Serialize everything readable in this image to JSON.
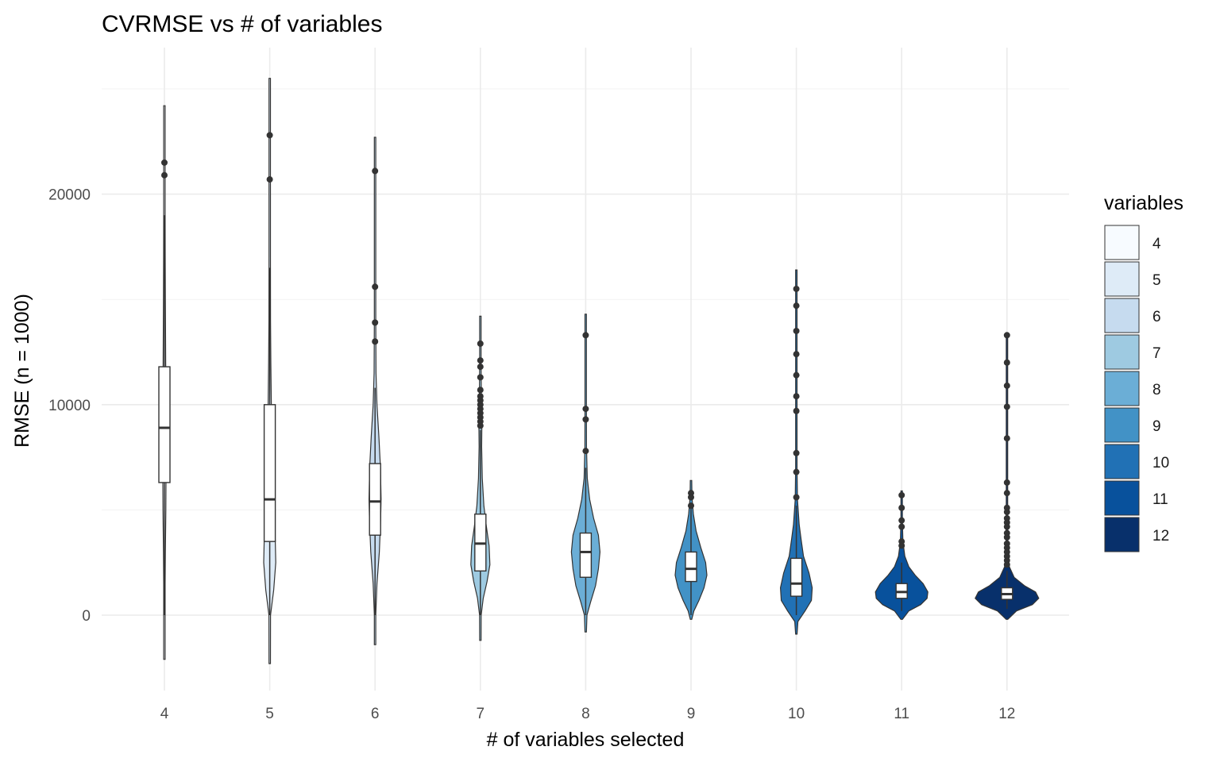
{
  "chart_data": {
    "type": "violin",
    "title": "CVRMSE vs # of variables",
    "xlabel": "# of variables selected",
    "ylabel": "RMSE (n = 1000)",
    "ylim": [
      -3600,
      26500
    ],
    "yticks": [
      0,
      10000,
      20000
    ],
    "grid": true,
    "legend": {
      "title": "variables",
      "position": "right"
    },
    "categories": [
      "4",
      "5",
      "6",
      "7",
      "8",
      "9",
      "10",
      "11",
      "12"
    ],
    "colors": [
      "#F7FBFF",
      "#DEEBF7",
      "#C6DBEF",
      "#9ECAE1",
      "#6BAED6",
      "#4292C6",
      "#2171B5",
      "#08519C",
      "#08306B"
    ],
    "series": [
      {
        "name": "4",
        "min": -2100,
        "max": 24200,
        "q1": 6300,
        "median": 8900,
        "q3": 11800,
        "whisker_low": 0,
        "whisker_high": 19000,
        "outliers": [
          21500,
          20900
        ],
        "density": [
          [
            -2100,
            0.02
          ],
          [
            0,
            0.03
          ],
          [
            1500,
            0.04
          ],
          [
            3000,
            0.06
          ],
          [
            5000,
            0.09
          ],
          [
            6500,
            0.1
          ],
          [
            8000,
            0.12
          ],
          [
            9000,
            0.12
          ],
          [
            10500,
            0.1
          ],
          [
            12000,
            0.08
          ],
          [
            13500,
            0.07
          ],
          [
            15000,
            0.06
          ],
          [
            17000,
            0.05
          ],
          [
            19000,
            0.03
          ],
          [
            21000,
            0.02
          ],
          [
            24200,
            0.01
          ]
        ]
      },
      {
        "name": "5",
        "min": -2300,
        "max": 25500,
        "q1": 3500,
        "median": 5500,
        "q3": 10000,
        "whisker_low": 0,
        "whisker_high": 16500,
        "outliers": [
          22800,
          20700
        ],
        "density": [
          [
            -2300,
            0.02
          ],
          [
            0,
            0.05
          ],
          [
            1200,
            0.25
          ],
          [
            2500,
            0.38
          ],
          [
            3500,
            0.35
          ],
          [
            5000,
            0.24
          ],
          [
            6500,
            0.17
          ],
          [
            8000,
            0.13
          ],
          [
            10000,
            0.1
          ],
          [
            12000,
            0.07
          ],
          [
            14000,
            0.05
          ],
          [
            17000,
            0.04
          ],
          [
            21000,
            0.03
          ],
          [
            25500,
            0.01
          ]
        ]
      },
      {
        "name": "6",
        "min": -1400,
        "max": 22700,
        "q1": 3800,
        "median": 5400,
        "q3": 7200,
        "whisker_low": 0,
        "whisker_high": 10800,
        "outliers": [
          21100,
          15600,
          13900,
          13000
        ],
        "density": [
          [
            -1400,
            0.02
          ],
          [
            0,
            0.04
          ],
          [
            1500,
            0.12
          ],
          [
            3000,
            0.27
          ],
          [
            4500,
            0.35
          ],
          [
            5500,
            0.38
          ],
          [
            7000,
            0.34
          ],
          [
            8500,
            0.24
          ],
          [
            10000,
            0.12
          ],
          [
            11500,
            0.06
          ],
          [
            14000,
            0.04
          ],
          [
            17000,
            0.03
          ],
          [
            22700,
            0.01
          ]
        ]
      },
      {
        "name": "7",
        "min": -1200,
        "max": 14200,
        "q1": 2100,
        "median": 3400,
        "q3": 4800,
        "whisker_low": 0,
        "whisker_high": 8800,
        "outliers": [
          12900,
          12100,
          11800,
          11300,
          10700,
          10400,
          10200,
          10000,
          9800,
          9600,
          9400,
          9200,
          9000
        ],
        "density": [
          [
            -1200,
            0.02
          ],
          [
            0,
            0.05
          ],
          [
            800,
            0.18
          ],
          [
            1600,
            0.42
          ],
          [
            2400,
            0.6
          ],
          [
            3300,
            0.55
          ],
          [
            4200,
            0.38
          ],
          [
            5200,
            0.22
          ],
          [
            6500,
            0.12
          ],
          [
            8000,
            0.08
          ],
          [
            9500,
            0.1
          ],
          [
            10500,
            0.06
          ],
          [
            12000,
            0.03
          ],
          [
            14200,
            0.01
          ]
        ]
      },
      {
        "name": "8",
        "min": -800,
        "max": 14300,
        "q1": 1800,
        "median": 3000,
        "q3": 3900,
        "whisker_low": 0,
        "whisker_high": 7000,
        "outliers": [
          13300,
          9800,
          9300,
          7800
        ],
        "density": [
          [
            -800,
            0.02
          ],
          [
            0,
            0.08
          ],
          [
            600,
            0.3
          ],
          [
            1400,
            0.62
          ],
          [
            2200,
            0.8
          ],
          [
            3000,
            0.9
          ],
          [
            3800,
            0.8
          ],
          [
            4600,
            0.5
          ],
          [
            5500,
            0.25
          ],
          [
            6500,
            0.1
          ],
          [
            8000,
            0.05
          ],
          [
            10000,
            0.03
          ],
          [
            14300,
            0.01
          ]
        ]
      },
      {
        "name": "9",
        "min": -200,
        "max": 6400,
        "q1": 1600,
        "median": 2200,
        "q3": 3000,
        "whisker_low": 0,
        "whisker_high": 5300,
        "outliers": [
          5800,
          5600,
          5200
        ],
        "density": [
          [
            -200,
            0.03
          ],
          [
            200,
            0.18
          ],
          [
            700,
            0.5
          ],
          [
            1300,
            0.82
          ],
          [
            1900,
            1.0
          ],
          [
            2500,
            0.92
          ],
          [
            3200,
            0.62
          ],
          [
            4000,
            0.32
          ],
          [
            4800,
            0.15
          ],
          [
            5600,
            0.06
          ],
          [
            6400,
            0.01
          ]
        ]
      },
      {
        "name": "10",
        "min": -900,
        "max": 16400,
        "q1": 900,
        "median": 1500,
        "q3": 2700,
        "whisker_low": 0,
        "whisker_high": 5200,
        "outliers": [
          15500,
          14700,
          13500,
          12400,
          11400,
          10400,
          9700,
          7700,
          6800,
          5600
        ],
        "density": [
          [
            -900,
            0.02
          ],
          [
            -300,
            0.1
          ],
          [
            200,
            0.55
          ],
          [
            700,
            0.95
          ],
          [
            1300,
            1.0
          ],
          [
            2000,
            0.8
          ],
          [
            2800,
            0.45
          ],
          [
            3600,
            0.3
          ],
          [
            4300,
            0.18
          ],
          [
            5500,
            0.07
          ],
          [
            7000,
            0.04
          ],
          [
            10000,
            0.02
          ],
          [
            16400,
            0.01
          ]
        ]
      },
      {
        "name": "11",
        "min": -200,
        "max": 5900,
        "q1": 800,
        "median": 1100,
        "q3": 1500,
        "whisker_low": 200,
        "whisker_high": 2500,
        "outliers": [
          5700,
          5100,
          4500,
          4200,
          3500,
          3300
        ],
        "density": [
          [
            -200,
            0.05
          ],
          [
            200,
            0.45
          ],
          [
            500,
            1.2
          ],
          [
            800,
            1.6
          ],
          [
            1100,
            1.65
          ],
          [
            1500,
            1.35
          ],
          [
            1900,
            0.85
          ],
          [
            2300,
            0.45
          ],
          [
            2800,
            0.2
          ],
          [
            3500,
            0.08
          ],
          [
            4500,
            0.04
          ],
          [
            5900,
            0.01
          ]
        ]
      },
      {
        "name": "12",
        "min": -200,
        "max": 13400,
        "q1": 750,
        "median": 1000,
        "q3": 1300,
        "whisker_low": 300,
        "whisker_high": 2100,
        "outliers": [
          13300,
          12000,
          10900,
          9900,
          8400,
          6300,
          5800,
          5100,
          4900,
          4600,
          4400,
          4200,
          3900,
          3700,
          3400,
          3200,
          3000,
          2800,
          2600,
          2400
        ],
        "density": [
          [
            -200,
            0.05
          ],
          [
            200,
            0.6
          ],
          [
            500,
            1.6
          ],
          [
            800,
            2.0
          ],
          [
            1100,
            1.8
          ],
          [
            1400,
            1.1
          ],
          [
            1800,
            0.45
          ],
          [
            2300,
            0.15
          ],
          [
            3000,
            0.06
          ],
          [
            4500,
            0.03
          ],
          [
            7000,
            0.02
          ],
          [
            13400,
            0.005
          ]
        ]
      }
    ]
  }
}
